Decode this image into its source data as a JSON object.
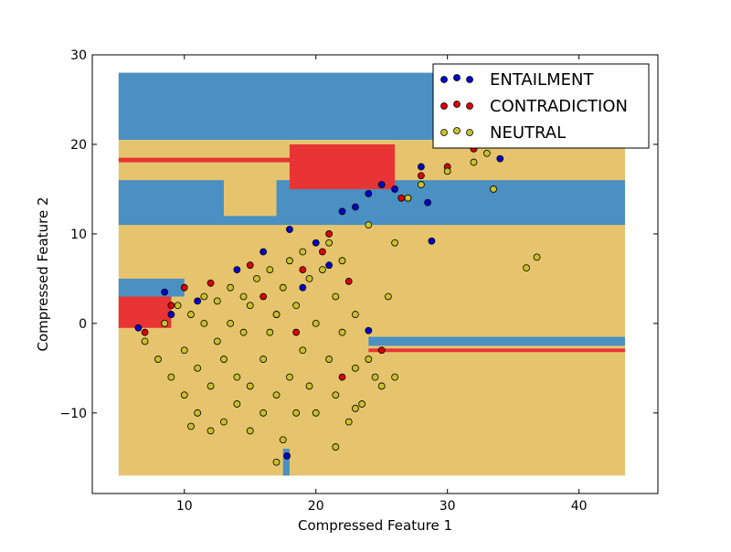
{
  "chart_data": {
    "type": "scatter",
    "title": "",
    "xlabel": "Compressed Feature 1",
    "ylabel": "Compressed Feature 2",
    "xlim": [
      3,
      46
    ],
    "ylim": [
      -19,
      30
    ],
    "xticks": [
      10,
      20,
      30,
      40
    ],
    "yticks": [
      -10,
      0,
      10,
      20,
      30
    ],
    "grid": false,
    "legend_position": "top-right",
    "region_colors": {
      "ENTAILMENT": "#4a90c2",
      "CONTRADICTION": "#e83434",
      "NEUTRAL": "#e6c46e"
    },
    "decision_regions": [
      {
        "label": "ENTAILMENT",
        "x": [
          5,
          43.5
        ],
        "y": [
          20.5,
          28
        ]
      },
      {
        "label": "NEUTRAL",
        "x": [
          5,
          43.5
        ],
        "y": [
          -17,
          20.5
        ]
      },
      {
        "label": "ENTAILMENT",
        "x": [
          5,
          43.5
        ],
        "y": [
          11,
          16
        ]
      },
      {
        "label": "NEUTRAL",
        "x": [
          13,
          17
        ],
        "y": [
          12,
          20
        ]
      },
      {
        "label": "CONTRADICTION",
        "x": [
          5,
          26
        ],
        "y": [
          18,
          18.5
        ]
      },
      {
        "label": "CONTRADICTION",
        "x": [
          18,
          26
        ],
        "y": [
          15,
          20
        ]
      },
      {
        "label": "CONTRADICTION",
        "x": [
          5,
          9
        ],
        "y": [
          -0.5,
          3
        ]
      },
      {
        "label": "ENTAILMENT",
        "x": [
          5,
          10
        ],
        "y": [
          3,
          5
        ]
      },
      {
        "label": "CONTRADICTION",
        "x": [
          24,
          43.5
        ],
        "y": [
          -3.2,
          -2.8
        ]
      },
      {
        "label": "ENTAILMENT",
        "x": [
          24,
          43.5
        ],
        "y": [
          -2.5,
          -1.5
        ]
      },
      {
        "label": "ENTAILMENT",
        "x": [
          17.5,
          18
        ],
        "y": [
          -17,
          -14
        ]
      }
    ],
    "series": [
      {
        "name": "ENTAILMENT",
        "color": "#0000cc",
        "points": [
          [
            6.5,
            -0.5
          ],
          [
            8.5,
            3.5
          ],
          [
            9,
            1
          ],
          [
            11,
            2.5
          ],
          [
            14,
            6
          ],
          [
            16,
            8
          ],
          [
            18,
            10.5
          ],
          [
            20,
            9
          ],
          [
            22,
            12.5
          ],
          [
            23,
            13
          ],
          [
            24,
            14.5
          ],
          [
            25,
            15.5
          ],
          [
            26,
            15
          ],
          [
            27,
            14
          ],
          [
            28,
            17.5
          ],
          [
            28.5,
            13.5
          ],
          [
            28.8,
            9.2
          ],
          [
            34,
            18.4
          ],
          [
            24,
            -0.8
          ],
          [
            17.8,
            -14.8
          ],
          [
            21,
            6.5
          ],
          [
            19,
            4
          ]
        ]
      },
      {
        "name": "CONTRADICTION",
        "color": "#dd0000",
        "points": [
          [
            7,
            -1
          ],
          [
            9,
            2
          ],
          [
            10,
            4
          ],
          [
            12,
            4.5
          ],
          [
            15,
            6.5
          ],
          [
            17,
            1
          ],
          [
            18.5,
            -1
          ],
          [
            20.5,
            8
          ],
          [
            22.5,
            4.7
          ],
          [
            22,
            -6
          ],
          [
            25,
            -3
          ],
          [
            26.5,
            14
          ],
          [
            28,
            16.5
          ],
          [
            30,
            17.5
          ],
          [
            32,
            19.5
          ],
          [
            21,
            10
          ],
          [
            19,
            6
          ],
          [
            16,
            3
          ]
        ]
      },
      {
        "name": "NEUTRAL",
        "color": "#c9c12a",
        "points": [
          [
            7,
            -2
          ],
          [
            8,
            -4
          ],
          [
            8.5,
            0
          ],
          [
            9,
            -6
          ],
          [
            9.5,
            2
          ],
          [
            10,
            -8
          ],
          [
            10,
            -3
          ],
          [
            10.5,
            1
          ],
          [
            11,
            -10
          ],
          [
            11,
            -5
          ],
          [
            11.5,
            0
          ],
          [
            11.5,
            3
          ],
          [
            12,
            -12
          ],
          [
            12,
            -7
          ],
          [
            12.5,
            -2
          ],
          [
            12.5,
            2.5
          ],
          [
            13,
            -11
          ],
          [
            13,
            -4
          ],
          [
            13.5,
            0
          ],
          [
            13.5,
            4
          ],
          [
            14,
            -9
          ],
          [
            14,
            -6
          ],
          [
            14.5,
            -1
          ],
          [
            14.5,
            3
          ],
          [
            15,
            -12
          ],
          [
            15,
            -7
          ],
          [
            15,
            2
          ],
          [
            15.5,
            5
          ],
          [
            16,
            -10
          ],
          [
            16,
            -4
          ],
          [
            16.5,
            -1
          ],
          [
            16.5,
            6
          ],
          [
            17,
            -8
          ],
          [
            17,
            1
          ],
          [
            17.5,
            -13
          ],
          [
            17.5,
            4
          ],
          [
            18,
            -6
          ],
          [
            18,
            7
          ],
          [
            18.5,
            -10
          ],
          [
            18.5,
            2
          ],
          [
            19,
            -3
          ],
          [
            19,
            8
          ],
          [
            19.5,
            -7
          ],
          [
            19.5,
            5
          ],
          [
            20,
            -10
          ],
          [
            20,
            0
          ],
          [
            20.5,
            6
          ],
          [
            21,
            -4
          ],
          [
            21,
            9
          ],
          [
            21.5,
            -8
          ],
          [
            21.5,
            3
          ],
          [
            22,
            -1
          ],
          [
            22,
            7
          ],
          [
            22.5,
            -11
          ],
          [
            23,
            -5
          ],
          [
            23,
            1
          ],
          [
            23.5,
            -9
          ],
          [
            24,
            -4
          ],
          [
            24,
            11
          ],
          [
            24.5,
            -6
          ],
          [
            25,
            -7
          ],
          [
            25.5,
            3
          ],
          [
            26,
            9
          ],
          [
            26,
            -6
          ],
          [
            27,
            14
          ],
          [
            28,
            15.5
          ],
          [
            30,
            17
          ],
          [
            32,
            18
          ],
          [
            33,
            19
          ],
          [
            33.5,
            15
          ],
          [
            36,
            6.2
          ],
          [
            36.8,
            7.4
          ],
          [
            17,
            -15.5
          ],
          [
            21.5,
            -13.8
          ],
          [
            23,
            -9.5
          ],
          [
            10.5,
            -11.5
          ]
        ]
      }
    ]
  }
}
